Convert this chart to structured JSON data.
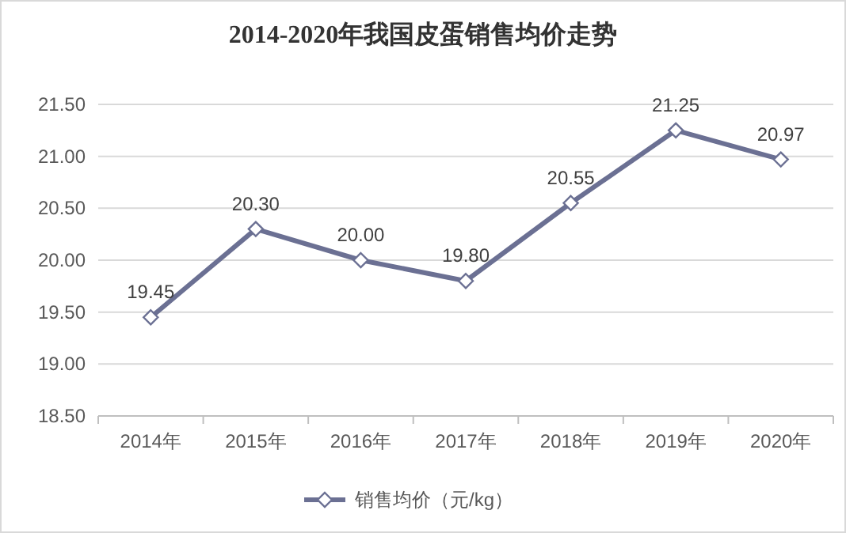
{
  "chart_data": {
    "type": "line",
    "title": "2014-2020年我国皮蛋销售均价走势",
    "categories": [
      "2014年",
      "2015年",
      "2016年",
      "2017年",
      "2018年",
      "2019年",
      "2020年"
    ],
    "series": [
      {
        "name": "销售均价（元/kg）",
        "color": "#6b7093",
        "values": [
          19.45,
          20.3,
          20.0,
          19.8,
          20.55,
          21.25,
          20.97
        ],
        "value_labels": [
          "19.45",
          "20.30",
          "20.00",
          "19.80",
          "20.55",
          "21.25",
          "20.97"
        ]
      }
    ],
    "ylim": [
      18.5,
      21.5
    ],
    "yticks": [
      {
        "value": 18.5,
        "label": "18.50"
      },
      {
        "value": 19,
        "label": "19.00"
      },
      {
        "value": 19.5,
        "label": "19.50"
      },
      {
        "value": 20,
        "label": "20.00"
      },
      {
        "value": 20.5,
        "label": "20.50"
      },
      {
        "value": 21,
        "label": "21.00"
      },
      {
        "value": 21.5,
        "label": "21.50"
      }
    ],
    "grid": "y",
    "legend": "bottom",
    "marker": "diamond",
    "line_style": "solid"
  }
}
